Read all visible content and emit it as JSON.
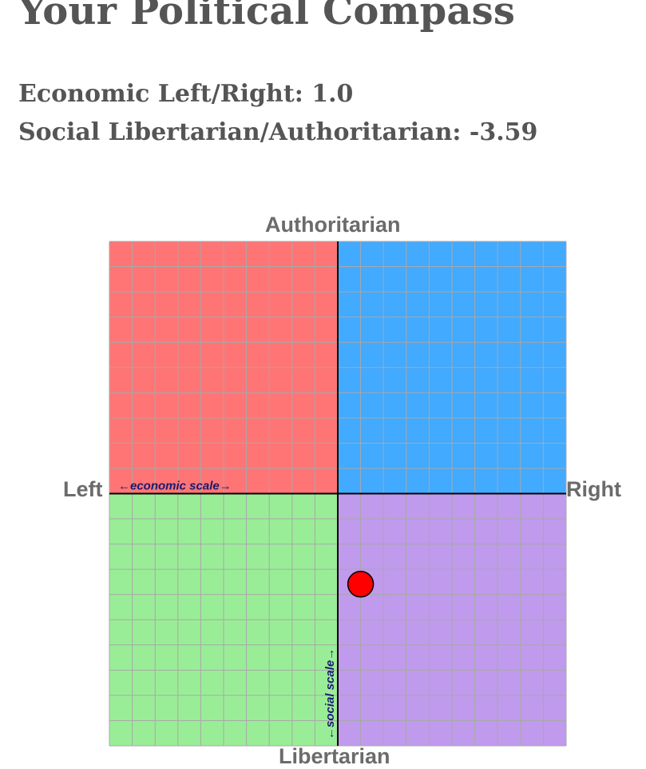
{
  "page": {
    "title": "Your Political Compass",
    "economic_label": "Economic Left/Right: 1.0",
    "social_label": "Social Libertarian/Authoritarian: -3.59"
  },
  "compass": {
    "top_label": "Authoritarian",
    "bottom_label": "Libertarian",
    "left_label": "Left",
    "right_label": "Right",
    "economic_scale_text": "←economic scale→",
    "social_scale_text": "←social scale→",
    "economic_score": 1.0,
    "social_score": -3.59,
    "range": [
      -10,
      10
    ],
    "colors": {
      "authoritarian_left": "#ff7575",
      "authoritarian_right": "#42aaff",
      "libertarian_left": "#9aed97",
      "libertarian_right": "#c09aec",
      "grid": "#a8a8a8",
      "axes": "#000000",
      "marker": "#ff0000",
      "scale_text": "#1a1a70"
    }
  }
}
